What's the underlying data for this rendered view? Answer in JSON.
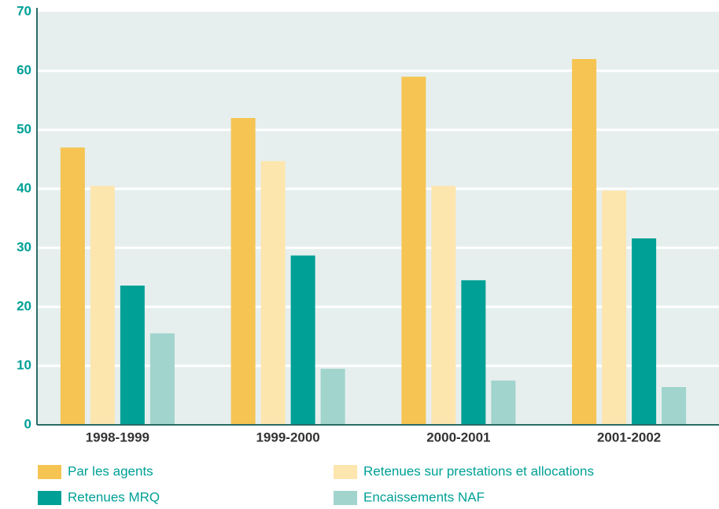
{
  "chart_data": {
    "type": "bar",
    "categories": [
      "1998-1999",
      "1999-2000",
      "2000-2001",
      "2001-2002"
    ],
    "series": [
      {
        "name": "Par les agents",
        "color": "#f5c452",
        "values": [
          47,
          52,
          59,
          62
        ]
      },
      {
        "name": "Retenues sur prestations et allocations",
        "color": "#fde5ae",
        "values": [
          40.5,
          44.7,
          40.5,
          39.7
        ]
      },
      {
        "name": "Retenues MRQ",
        "color": "#00a096",
        "values": [
          23.6,
          28.7,
          24.5,
          31.6
        ]
      },
      {
        "name": "Encaissements NAF",
        "color": "#a0d4cc",
        "values": [
          15.5,
          9.5,
          7.5,
          6.4
        ]
      }
    ],
    "ylim": [
      0,
      70
    ],
    "yticks": [
      0,
      10,
      20,
      30,
      40,
      50,
      60,
      70
    ],
    "grid": true
  }
}
